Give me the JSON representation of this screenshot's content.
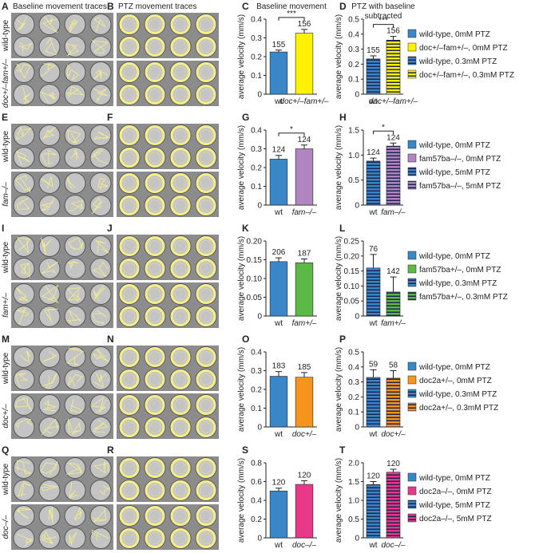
{
  "image_panels": [
    {
      "label": "A",
      "title": "Baseline movement traces",
      "row_labels": [
        "wild-type",
        "doc+/–fam+/–"
      ],
      "style": "baseline"
    },
    {
      "label": "B",
      "title": "PTZ movement traces",
      "style": "ptz"
    },
    {
      "label": "E",
      "row_labels": [
        "wild-type",
        "fam–/–"
      ],
      "style": "baseline"
    },
    {
      "label": "F",
      "style": "ptz"
    },
    {
      "label": "I",
      "row_labels": [
        "wild-type",
        "fam+/–"
      ],
      "style": "baseline"
    },
    {
      "label": "J",
      "style": "ptz"
    },
    {
      "label": "M",
      "row_labels": [
        "wild-type",
        "doc+/–"
      ],
      "style": "baseline"
    },
    {
      "label": "N",
      "style": "ptz"
    },
    {
      "label": "Q",
      "row_labels": [
        "wild-type",
        "doc–/–"
      ],
      "style": "baseline"
    },
    {
      "label": "R",
      "style": "ptz"
    }
  ],
  "chart_data": [
    {
      "type": "bar",
      "label": "C",
      "title": [
        "Baseline movement"
      ],
      "y_label": "average velocity (mm/s)",
      "categories": [
        "wt",
        "doc+/–fam+/–"
      ],
      "values": [
        0.225,
        0.325
      ],
      "errors": [
        0.01,
        0.02
      ],
      "n_labels": [
        "155",
        "156"
      ],
      "colors": [
        "#3a87c8",
        "#fff200"
      ],
      "significance": "***",
      "ylim": [
        0,
        0.4
      ],
      "yticks": [
        0,
        0.1,
        0.2,
        0.3,
        0.4
      ]
    },
    {
      "type": "bar",
      "label": "D",
      "title": [
        "PTZ with baseline",
        "subtracted"
      ],
      "y_label": "average velocity (mm/s)",
      "categories": [
        "wt",
        "doc+/–fam+/–"
      ],
      "values": [
        0.235,
        0.36
      ],
      "errors": [
        0.02,
        0.025
      ],
      "n_labels": [
        "155",
        "156"
      ],
      "colors": [
        "#3a87c8",
        "#fff200"
      ],
      "bar_style": "striped",
      "significance": "***",
      "ylim": [
        0,
        0.5
      ],
      "yticks": [
        0,
        0.1,
        0.2,
        0.3,
        0.4,
        0.5
      ],
      "legend": [
        {
          "label": "wild-type, 0mM PTZ",
          "color": "#3a87c8",
          "striped": false
        },
        {
          "label": "doc+/–fam+/–, 0mM PTZ",
          "color": "#fff200",
          "striped": false
        },
        {
          "label": "wild-type, 0.3mM PTZ",
          "color": "#3a87c8",
          "striped": true
        },
        {
          "label": "doc+/–fam+/–, 0.3mM PTZ",
          "color": "#fff200",
          "striped": true
        }
      ]
    },
    {
      "type": "bar",
      "label": "G",
      "y_label": "average velocity (mm/s)",
      "categories": [
        "wt",
        "fam–/–"
      ],
      "values": [
        0.245,
        0.3
      ],
      "errors": [
        0.02,
        0.02
      ],
      "n_labels": [
        "124",
        "124"
      ],
      "colors": [
        "#3a87c8",
        "#b085c0"
      ],
      "significance": "*",
      "ylim": [
        0,
        0.4
      ],
      "yticks": [
        0,
        0.1,
        0.2,
        0.3,
        0.4
      ]
    },
    {
      "type": "bar",
      "label": "H",
      "y_label": "average velocity (mm/s)",
      "categories": [
        "wt",
        "fam–/–"
      ],
      "values": [
        0.88,
        1.18
      ],
      "errors": [
        0.06,
        0.06
      ],
      "n_labels": [
        "124",
        "124"
      ],
      "colors": [
        "#3a87c8",
        "#b085c0"
      ],
      "bar_style": "striped",
      "significance": "*",
      "ylim": [
        0,
        1.5
      ],
      "yticks": [
        0,
        0.5,
        {
          "value": 1,
          "label": "1.0"
        },
        1.5
      ],
      "legend": [
        {
          "label": "wild-type, 0mM PTZ",
          "color": "#3a87c8",
          "striped": false
        },
        {
          "label": "fam57ba–/–, 0mM PTZ",
          "color": "#b085c0",
          "striped": false
        },
        {
          "label": "wild-type, 5mM PTZ",
          "color": "#3a87c8",
          "striped": true
        },
        {
          "label": "fam57ba–/–, 5mM PTZ",
          "color": "#b085c0",
          "striped": true
        }
      ]
    },
    {
      "type": "bar",
      "label": "K",
      "y_label": "average velocity (mm/s)",
      "categories": [
        "wt",
        "fam+/–"
      ],
      "values": [
        0.145,
        0.142
      ],
      "errors": [
        0.01,
        0.01
      ],
      "n_labels": [
        "206",
        "187"
      ],
      "colors": [
        "#3a87c8",
        "#5cb946"
      ],
      "ylim": [
        0,
        0.2
      ],
      "yticks": [
        0,
        0.05,
        {
          "value": 0.1,
          "label": "0.10"
        },
        0.15,
        {
          "value": 0.2,
          "label": "0.20"
        }
      ]
    },
    {
      "type": "bar",
      "label": "L",
      "y_label": "average velocity (mm/s)",
      "categories": [
        "wt",
        "fam+/–"
      ],
      "values": [
        0.16,
        0.08
      ],
      "errors": [
        0.045,
        0.05
      ],
      "n_labels": [
        "76",
        "142"
      ],
      "colors": [
        "#3a87c8",
        "#5cb946"
      ],
      "bar_style": "striped",
      "ylim": [
        0,
        0.25
      ],
      "yticks": [
        0,
        0.05,
        {
          "value": 0.1,
          "label": "0.10"
        },
        0.15,
        {
          "value": 0.2,
          "label": "0.20"
        },
        0.25
      ],
      "legend": [
        {
          "label": "wild-type, 0mM PTZ",
          "color": "#3a87c8",
          "striped": false
        },
        {
          "label": "fam57ba+/–, 0mM PTZ",
          "color": "#5cb946",
          "striped": false
        },
        {
          "label": "wild-type, 0.3mM PTZ",
          "color": "#3a87c8",
          "striped": true
        },
        {
          "label": "fam57ba+/–, 0.3mM PTZ",
          "color": "#5cb946",
          "striped": true
        }
      ]
    },
    {
      "type": "bar",
      "label": "O",
      "y_label": "average velocity (mm/s)",
      "categories": [
        "wt",
        "doc+/–"
      ],
      "values": [
        0.27,
        0.265
      ],
      "errors": [
        0.025,
        0.025
      ],
      "n_labels": [
        "183",
        "185"
      ],
      "colors": [
        "#3a87c8",
        "#f7941d"
      ],
      "ylim": [
        0,
        0.4
      ],
      "yticks": [
        0,
        0.1,
        0.2,
        0.3,
        0.4
      ]
    },
    {
      "type": "bar",
      "label": "P",
      "y_label": "average velocity (mm/s)",
      "categories": [
        "wt",
        "doc+/–"
      ],
      "values": [
        0.33,
        0.325
      ],
      "errors": [
        0.05,
        0.05
      ],
      "n_labels": [
        "59",
        "58"
      ],
      "colors": [
        "#3a87c8",
        "#f7941d"
      ],
      "bar_style": "striped",
      "ylim": [
        0,
        0.5
      ],
      "yticks": [
        0,
        0.1,
        0.2,
        0.3,
        0.4,
        0.5
      ],
      "legend": [
        {
          "label": "wild-type, 0mM PTZ",
          "color": "#3a87c8",
          "striped": false
        },
        {
          "label": "doc2a+/–, 0mM PTZ",
          "color": "#f7941d",
          "striped": false
        },
        {
          "label": "wild-type, 0.3mM PTZ",
          "color": "#3a87c8",
          "striped": true
        },
        {
          "label": "doc2a+/–, 0.3mM PTZ",
          "color": "#f7941d",
          "striped": true
        }
      ]
    },
    {
      "type": "bar",
      "label": "S",
      "y_label": "average velocity (mm/s)",
      "categories": [
        "wt",
        "doc–/–"
      ],
      "values": [
        0.5,
        0.57
      ],
      "errors": [
        0.03,
        0.04
      ],
      "n_labels": [
        "120",
        "120"
      ],
      "colors": [
        "#3a87c8",
        "#e8388a"
      ],
      "ylim": [
        0,
        0.8
      ],
      "yticks": [
        0,
        0.2,
        0.4,
        0.6,
        0.8
      ]
    },
    {
      "type": "bar",
      "label": "T",
      "y_label": "average velocity (mm/s)",
      "categories": [
        "wt",
        "doc–/–"
      ],
      "values": [
        1.42,
        1.75
      ],
      "errors": [
        0.08,
        0.08
      ],
      "n_labels": [
        "120",
        "120"
      ],
      "colors": [
        "#3a87c8",
        "#e8388a"
      ],
      "bar_style": "striped",
      "ylim": [
        0,
        2
      ],
      "yticks": [
        0,
        0.5,
        {
          "value": 1,
          "label": "1.0"
        },
        1.5,
        {
          "value": 2,
          "label": "2.0"
        }
      ],
      "legend": [
        {
          "label": "wild-type, 0mM PTZ",
          "color": "#3a87c8",
          "striped": false
        },
        {
          "label": "doc2a–/–, 0mM PTZ",
          "color": "#e8388a",
          "striped": false
        },
        {
          "label": "wild-type, 5mM PTZ",
          "color": "#3a87c8",
          "striped": true
        },
        {
          "label": "doc2a–/–, 5mM PTZ",
          "color": "#e8388a",
          "striped": true
        }
      ]
    }
  ]
}
